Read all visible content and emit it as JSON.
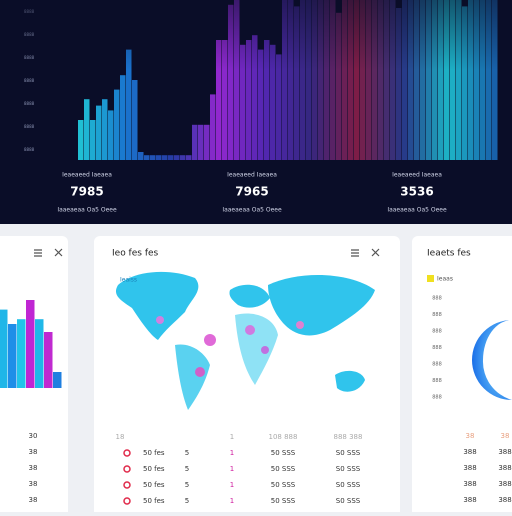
{
  "top_panel": {
    "y_ticks": [
      "8888",
      "8888",
      "8888",
      "8888",
      "8888",
      "8888",
      "8888"
    ],
    "bars": [
      25,
      38,
      25,
      34,
      38,
      31,
      44,
      53,
      69,
      50,
      5,
      3,
      3,
      3,
      3,
      3,
      3,
      3,
      3,
      22,
      22,
      22,
      41,
      75,
      75,
      97,
      100,
      72,
      75,
      78,
      69,
      75,
      72,
      66,
      100,
      100,
      96,
      100,
      100,
      100,
      100,
      100,
      100,
      92,
      100,
      100,
      100,
      100,
      100,
      100,
      100,
      100,
      100,
      95,
      100,
      100,
      100,
      100,
      100,
      100,
      100,
      100,
      100,
      100,
      96,
      100,
      100,
      100,
      100,
      100
    ],
    "color_stops": [
      "#22d3e6",
      "#1b7fe0",
      "#2a3fb0",
      "#a02be0",
      "#5a2ac0",
      "#3a2a8a",
      "#8a1f4a",
      "#2a3a90",
      "#1fc8d8",
      "#1a6ab8"
    ],
    "stats": [
      {
        "label": "Ieaeaeed Iaeaea",
        "value": "7985",
        "sub": "Iaaeaeaa Oa5 Oeee"
      },
      {
        "label": "Ieaeaeed Iaeaea",
        "value": "7965",
        "sub": "Iaaeaeaa Oa5 Oeee"
      },
      {
        "label": "Ieaeaeed Iaeaea",
        "value": "3536",
        "sub": "Iaaeaeaa Oa5 Oeee"
      }
    ]
  },
  "left_card": {
    "bars": [
      49,
      40,
      43,
      55,
      43,
      35,
      10
    ],
    "bar_colors": [
      "#1fb6e8",
      "#1f8ee8",
      "#22c4ea",
      "#c026d3",
      "#20b8e8",
      "#c02ad0",
      "#1f7fe0"
    ],
    "rows": [
      "30",
      "38",
      "38",
      "38",
      "38"
    ]
  },
  "map_card": {
    "title": "Ieo fes fes",
    "map_label": "Ieaiss",
    "table": {
      "rows": [
        [
          "18",
          "1",
          "108 888",
          "888 388"
        ],
        [
          "50 fes",
          "5",
          "1",
          "50 SSS",
          "S0 SSS"
        ],
        [
          "50 fes",
          "5",
          "1",
          "50 SSS",
          "S0 SSS"
        ],
        [
          "50 fes",
          "5",
          "1",
          "50 SSS",
          "S0 SSS"
        ],
        [
          "50 fes",
          "5",
          "1",
          "50 SSS",
          "S0 SSS"
        ]
      ]
    }
  },
  "right_card": {
    "title": "Ieaets fes",
    "legend": "Ieaas",
    "y_ticks": [
      "888",
      "888",
      "888",
      "888",
      "888",
      "888",
      "888"
    ],
    "rows": [
      [
        "38",
        "38"
      ],
      [
        "388",
        "388"
      ],
      [
        "388",
        "388"
      ],
      [
        "388",
        "388"
      ],
      [
        "388",
        "388"
      ]
    ]
  }
}
